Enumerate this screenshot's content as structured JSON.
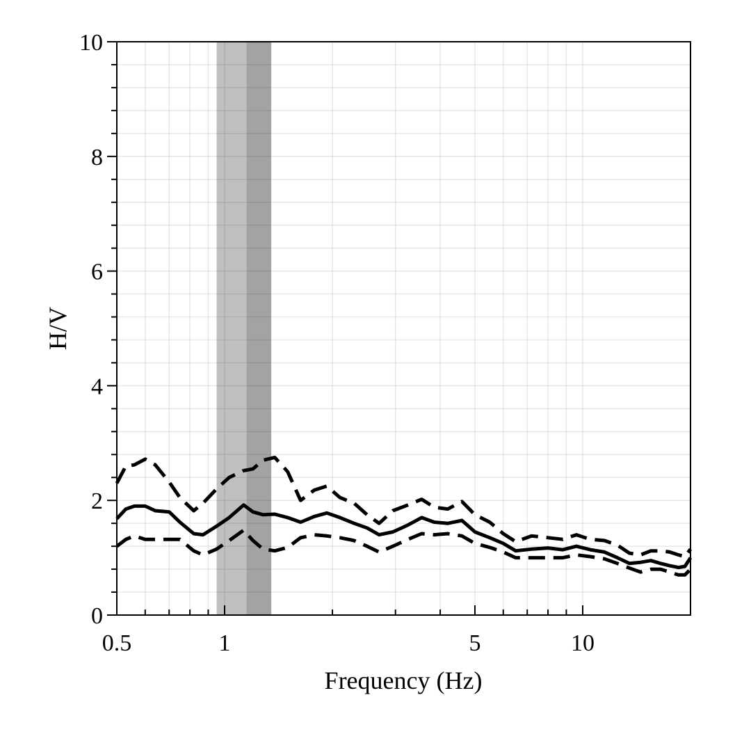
{
  "chart_data": {
    "type": "line",
    "title": "",
    "xlabel": "Frequency (Hz)",
    "ylabel": "H/V",
    "xscale": "log",
    "xlim": [
      0.5,
      20
    ],
    "ylim": [
      0,
      10
    ],
    "grid": true,
    "legend": "none",
    "x_ticks": [
      {
        "value": 0.5,
        "label": "0.5"
      },
      {
        "value": 1,
        "label": "1"
      },
      {
        "value": 5,
        "label": "5"
      },
      {
        "value": 10,
        "label": "10"
      }
    ],
    "y_ticks": [
      {
        "value": 0,
        "label": "0"
      },
      {
        "value": 2,
        "label": "2"
      },
      {
        "value": 4,
        "label": "4"
      },
      {
        "value": 6,
        "label": "6"
      },
      {
        "value": 8,
        "label": "8"
      },
      {
        "value": 10,
        "label": "10"
      }
    ],
    "shaded_bands": [
      {
        "x0": 0.95,
        "x1": 1.15,
        "color": "#c0c0c2"
      },
      {
        "x0": 1.15,
        "x1": 1.35,
        "color": "#a3a3a6"
      }
    ],
    "series": [
      {
        "style": "solid",
        "x": [
          0.5,
          0.53,
          0.56,
          0.6,
          0.64,
          0.7,
          0.75,
          0.82,
          0.87,
          0.95,
          1.03,
          1.13,
          1.2,
          1.28,
          1.38,
          1.5,
          1.63,
          1.78,
          1.93,
          2.1,
          2.3,
          2.5,
          2.7,
          2.95,
          3.25,
          3.55,
          3.85,
          4.2,
          4.6,
          5.0,
          5.5,
          6.0,
          6.5,
          7.2,
          8.0,
          8.8,
          9.6,
          10.5,
          11.5,
          12.5,
          13.5,
          14.5,
          15.5,
          16.5,
          17.5,
          18.5,
          19.3,
          20.0
        ],
        "y": [
          1.68,
          1.85,
          1.9,
          1.9,
          1.82,
          1.8,
          1.62,
          1.42,
          1.4,
          1.55,
          1.7,
          1.92,
          1.8,
          1.75,
          1.76,
          1.7,
          1.62,
          1.72,
          1.78,
          1.7,
          1.6,
          1.52,
          1.4,
          1.45,
          1.57,
          1.7,
          1.62,
          1.6,
          1.65,
          1.45,
          1.35,
          1.25,
          1.12,
          1.15,
          1.17,
          1.14,
          1.2,
          1.14,
          1.1,
          1.0,
          0.9,
          0.92,
          0.95,
          0.9,
          0.86,
          0.83,
          0.85,
          1.0
        ]
      },
      {
        "style": "dashed",
        "x": [
          0.5,
          0.53,
          0.56,
          0.6,
          0.64,
          0.7,
          0.75,
          0.82,
          0.87,
          0.95,
          1.03,
          1.13,
          1.2,
          1.28,
          1.38,
          1.5,
          1.63,
          1.78,
          1.93,
          2.1,
          2.3,
          2.5,
          2.7,
          2.95,
          3.25,
          3.55,
          3.85,
          4.2,
          4.6,
          5.0,
          5.5,
          6.0,
          6.5,
          7.2,
          8.0,
          8.8,
          9.6,
          10.5,
          11.5,
          12.5,
          13.5,
          14.5,
          15.5,
          16.5,
          17.5,
          18.5,
          19.3,
          20.0
        ],
        "y": [
          2.3,
          2.6,
          2.62,
          2.72,
          2.62,
          2.32,
          2.05,
          1.82,
          1.95,
          2.2,
          2.4,
          2.52,
          2.55,
          2.7,
          2.75,
          2.5,
          2.0,
          2.18,
          2.25,
          2.05,
          1.95,
          1.75,
          1.6,
          1.82,
          1.92,
          2.02,
          1.88,
          1.85,
          1.98,
          1.75,
          1.62,
          1.42,
          1.28,
          1.38,
          1.35,
          1.32,
          1.4,
          1.32,
          1.3,
          1.22,
          1.08,
          1.05,
          1.12,
          1.12,
          1.1,
          1.05,
          1.02,
          1.15
        ]
      },
      {
        "style": "dashed",
        "x": [
          0.5,
          0.53,
          0.56,
          0.6,
          0.64,
          0.7,
          0.75,
          0.82,
          0.87,
          0.95,
          1.03,
          1.13,
          1.2,
          1.28,
          1.38,
          1.5,
          1.63,
          1.78,
          1.93,
          2.1,
          2.3,
          2.5,
          2.7,
          2.95,
          3.25,
          3.55,
          3.85,
          4.2,
          4.6,
          5.0,
          5.5,
          6.0,
          6.5,
          7.2,
          8.0,
          8.8,
          9.6,
          10.5,
          11.5,
          12.5,
          13.5,
          14.5,
          15.5,
          16.5,
          17.5,
          18.5,
          19.3,
          20.0
        ],
        "y": [
          1.2,
          1.32,
          1.38,
          1.32,
          1.32,
          1.32,
          1.32,
          1.12,
          1.05,
          1.15,
          1.3,
          1.48,
          1.3,
          1.15,
          1.12,
          1.18,
          1.35,
          1.4,
          1.38,
          1.35,
          1.3,
          1.2,
          1.1,
          1.2,
          1.32,
          1.42,
          1.4,
          1.42,
          1.38,
          1.25,
          1.18,
          1.1,
          1.0,
          1.0,
          1.0,
          1.0,
          1.05,
          1.02,
          0.98,
          0.9,
          0.82,
          0.75,
          0.8,
          0.8,
          0.75,
          0.7,
          0.7,
          0.8
        ]
      }
    ]
  }
}
